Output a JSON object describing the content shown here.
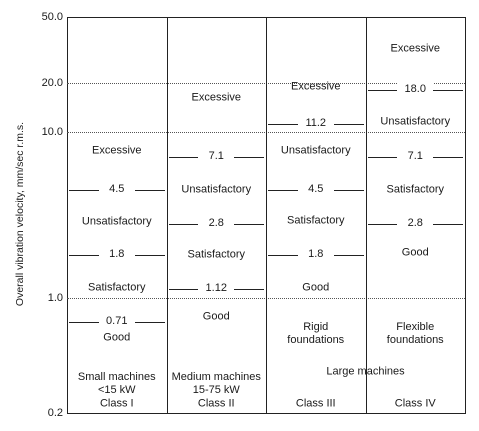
{
  "chart_data": {
    "type": "table",
    "ylabel": "Overall vibration velocity, mm/sec r.m.s.",
    "yscale": "log",
    "ylim": [
      0.2,
      50
    ],
    "y_ticks": [
      {
        "value": 50,
        "label": "50.0"
      },
      {
        "value": 20,
        "label": "20.0"
      },
      {
        "value": 10,
        "label": "10.0"
      },
      {
        "value": 1,
        "label": "1.0"
      },
      {
        "value": 0.2,
        "label": "0.2"
      }
    ],
    "gridlines": [
      20,
      10,
      1
    ],
    "columns": [
      {
        "class_label": "Class I",
        "machine_label": [
          "Small machines",
          "<15 kW"
        ],
        "thresholds": [
          {
            "value": 4.5,
            "label": "4.5"
          },
          {
            "value": 1.8,
            "label": "1.8"
          },
          {
            "value": 0.71,
            "label": "0.71"
          }
        ],
        "zones": [
          {
            "label": [
              "Excessive"
            ],
            "value": 7.7
          },
          {
            "label": [
              "Unsatisfactory"
            ],
            "value": 2.85
          },
          {
            "label": [
              "Satisfactory"
            ],
            "value": 1.15
          },
          {
            "label": [
              "Good"
            ],
            "value": 0.57
          }
        ]
      },
      {
        "class_label": "Class II",
        "machine_label": [
          "Medium machines",
          "15-75 kW"
        ],
        "thresholds": [
          {
            "value": 7.1,
            "label": "7.1"
          },
          {
            "value": 2.8,
            "label": "2.8"
          },
          {
            "value": 1.12,
            "label": "1.12"
          }
        ],
        "zones": [
          {
            "label": [
              "Excessive"
            ],
            "value": 16.2
          },
          {
            "label": [
              "Unsatisfactory"
            ],
            "value": 4.45
          },
          {
            "label": [
              "Satisfactory"
            ],
            "value": 1.8
          },
          {
            "label": [
              "Good"
            ],
            "value": 0.76
          }
        ]
      },
      {
        "class_label": "Class III",
        "thresholds": [
          {
            "value": 11.2,
            "label": "11.2"
          },
          {
            "value": 4.5,
            "label": "4.5"
          },
          {
            "value": 1.8,
            "label": "1.8"
          }
        ],
        "zones": [
          {
            "label": [
              "Excessive"
            ],
            "value": 18.8
          },
          {
            "label": [
              "Unsatisfactory"
            ],
            "value": 7.7
          },
          {
            "label": [
              "Satisfactory"
            ],
            "value": 2.9
          },
          {
            "label": [
              "Good"
            ],
            "value": 1.15
          },
          {
            "label": [
              "Rigid",
              "foundations"
            ],
            "value": 0.6
          }
        ]
      },
      {
        "class_label": "Class IV",
        "thresholds": [
          {
            "value": 18.0,
            "label": "18.0"
          },
          {
            "value": 7.1,
            "label": "7.1"
          },
          {
            "value": 2.8,
            "label": "2.8"
          }
        ],
        "zones": [
          {
            "label": [
              "Excessive"
            ],
            "value": 32
          },
          {
            "label": [
              "Unsatisfactory"
            ],
            "value": 11.5
          },
          {
            "label": [
              "Satisfactory"
            ],
            "value": 4.5
          },
          {
            "label": [
              "Good"
            ],
            "value": 1.85
          },
          {
            "label": [
              "Flexible",
              "foundations"
            ],
            "value": 0.6
          }
        ]
      }
    ],
    "shared_label": {
      "text": "Large machines",
      "columns": [
        2,
        3
      ]
    }
  }
}
